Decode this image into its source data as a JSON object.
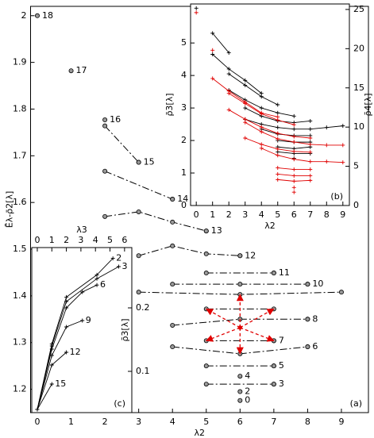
{
  "chart_data": [
    {
      "type": "scatter",
      "panel_label": "(a)",
      "xlabel": "λ2",
      "ylabel": "Ēλ-ρ̄2[λ]",
      "xlim": [
        -0.2,
        9.8
      ],
      "ylim": [
        1.15,
        2.02
      ],
      "xticks": [
        0,
        1,
        2,
        3,
        4,
        5,
        6,
        7,
        8,
        9
      ],
      "yticks": [
        1.2,
        1.3,
        1.4,
        1.5,
        1.6,
        1.7,
        1.8,
        1.9,
        2
      ],
      "point_color": "#999999",
      "points": {
        "x": [
          0,
          1,
          2,
          3,
          4,
          5,
          6,
          7,
          8,
          8,
          7,
          8,
          7,
          7,
          6,
          6,
          6
        ],
        "y": [
          2.0,
          1.882,
          1.777,
          1.686,
          1.607,
          1.539,
          1.486,
          1.449,
          1.425,
          1.35,
          1.304,
          1.291,
          1.25,
          1.211,
          1.228,
          1.195,
          1.176
        ],
        "labels": [
          "18",
          "17",
          "16",
          "15",
          "14",
          "13",
          "12",
          "11",
          "10",
          "8",
          "7",
          "6",
          "5",
          "3",
          "4",
          "2",
          "0"
        ]
      },
      "series": [
        {
          "color": "#000000",
          "x": [
            2,
            3
          ],
          "y": [
            1.764,
            1.686
          ]
        },
        {
          "color": "#000000",
          "x": [
            2,
            4
          ],
          "y": [
            1.667,
            1.607
          ]
        },
        {
          "color": "#000000",
          "x": [
            2,
            3,
            4,
            5
          ],
          "y": [
            1.57,
            1.58,
            1.558,
            1.539
          ]
        },
        {
          "color": "#000000",
          "x": [
            3,
            4,
            5,
            6
          ],
          "y": [
            1.486,
            1.507,
            1.49,
            1.486
          ]
        },
        {
          "color": "#000000",
          "x": [
            5,
            7
          ],
          "y": [
            1.449,
            1.449
          ]
        },
        {
          "color": "#000000",
          "x": [
            4,
            6,
            8
          ],
          "y": [
            1.425,
            1.425,
            1.425
          ]
        },
        {
          "color": "#000000",
          "x": [
            3,
            6,
            9
          ],
          "y": [
            1.408,
            1.403,
            1.408
          ]
        },
        {
          "color": "#000000",
          "x": [
            5,
            7
          ],
          "y": [
            1.372,
            1.372
          ]
        },
        {
          "color": "#000000",
          "x": [
            4,
            6,
            8
          ],
          "y": [
            1.337,
            1.35,
            1.35
          ]
        },
        {
          "color": "#000000",
          "x": [
            5,
            7
          ],
          "y": [
            1.304,
            1.304
          ]
        },
        {
          "color": "#000000",
          "x": [
            4,
            6,
            8
          ],
          "y": [
            1.291,
            1.276,
            1.291
          ]
        },
        {
          "color": "#000000",
          "x": [
            5,
            7
          ],
          "y": [
            1.25,
            1.25
          ]
        },
        {
          "color": "#000000",
          "x": [
            5,
            7
          ],
          "y": [
            1.211,
            1.211
          ]
        }
      ],
      "arrows": {
        "color": "#e00000",
        "from": {
          "x": 6,
          "y": 1.332
        },
        "to_x": [
          5,
          7,
          5,
          7,
          6,
          6
        ],
        "to_y": [
          1.372,
          1.372,
          1.304,
          1.304,
          1.403,
          1.276
        ]
      }
    },
    {
      "type": "line",
      "panel_label": "(b)",
      "xlabel": "λ2",
      "ylabel": "ρ̄3[λ]",
      "y2label": "ρ̄4[λ]",
      "xlim": [
        -0.35,
        9.4
      ],
      "ylim": [
        0,
        6.2
      ],
      "y2lim": [
        0,
        25.7
      ],
      "xticks": [
        0,
        1,
        2,
        3,
        4,
        5,
        6,
        7,
        8,
        9
      ],
      "yticks": [
        0,
        1,
        2,
        3,
        4,
        5
      ],
      "y2ticks": [
        0,
        5,
        10,
        15,
        20,
        25
      ],
      "y2color": "#e00000",
      "series": [
        {
          "color": "#000000",
          "axis": "y",
          "x": [
            0
          ],
          "values": [
            6.07
          ]
        },
        {
          "color": "#000000",
          "axis": "y",
          "x": [
            1,
            2
          ],
          "values": [
            5.3,
            4.7
          ]
        },
        {
          "color": "#000000",
          "axis": "y",
          "x": [
            1,
            2,
            3,
            4
          ],
          "values": [
            4.65,
            4.2,
            3.85,
            3.45
          ]
        },
        {
          "color": "#000000",
          "axis": "y",
          "x": [
            2,
            3,
            4,
            5
          ],
          "values": [
            4.05,
            3.7,
            3.35,
            3.1
          ]
        },
        {
          "color": "#000000",
          "axis": "y",
          "x": [
            2,
            3,
            4,
            5,
            6
          ],
          "values": [
            3.55,
            3.25,
            3.0,
            2.85,
            2.75
          ]
        },
        {
          "color": "#000000",
          "axis": "y",
          "x": [
            3,
            4,
            5,
            6,
            7
          ],
          "values": [
            3.0,
            2.75,
            2.6,
            2.55,
            2.6
          ]
        },
        {
          "color": "#000000",
          "axis": "y",
          "x": [
            3,
            4,
            5,
            6,
            7,
            8,
            9
          ],
          "values": [
            2.65,
            2.5,
            2.4,
            2.35,
            2.35,
            2.4,
            2.45
          ]
        },
        {
          "color": "#000000",
          "axis": "y",
          "x": [
            4,
            5,
            6,
            7
          ],
          "values": [
            2.35,
            2.2,
            2.15,
            2.15
          ]
        },
        {
          "color": "#000000",
          "axis": "y",
          "x": [
            5,
            6,
            7
          ],
          "values": [
            2.0,
            1.95,
            1.95
          ]
        },
        {
          "color": "#000000",
          "axis": "y",
          "x": [
            5,
            6,
            7
          ],
          "values": [
            1.8,
            1.75,
            1.8
          ]
        },
        {
          "color": "#000000",
          "axis": "y",
          "x": [
            5,
            6,
            7
          ],
          "values": [
            1.65,
            1.6,
            1.6
          ]
        },
        {
          "color": "#000000",
          "axis": "y",
          "x": [
            6
          ],
          "values": [
            1.45
          ]
        },
        {
          "color": "#e00000",
          "axis": "y2",
          "x": [
            0
          ],
          "values": [
            24.6
          ]
        },
        {
          "color": "#e00000",
          "axis": "y2",
          "x": [
            1
          ],
          "values": [
            19.8
          ]
        },
        {
          "color": "#e00000",
          "axis": "y2",
          "x": [
            1,
            2,
            3,
            4,
            5
          ],
          "values": [
            16.2,
            14.6,
            13.2,
            11.8,
            11.3
          ]
        },
        {
          "color": "#e00000",
          "axis": "y2",
          "x": [
            2,
            3,
            4,
            5,
            6
          ],
          "values": [
            14.3,
            13.0,
            11.7,
            10.9,
            10.3
          ]
        },
        {
          "color": "#e00000",
          "axis": "y2",
          "x": [
            2,
            3,
            4,
            5,
            6,
            7
          ],
          "values": [
            12.2,
            11.0,
            10.0,
            9.2,
            8.8,
            8.6
          ]
        },
        {
          "color": "#e00000",
          "axis": "y2",
          "x": [
            3,
            4,
            5,
            6,
            7,
            8,
            9
          ],
          "values": [
            10.6,
            9.4,
            8.5,
            8.1,
            7.8,
            7.7,
            7.7
          ]
        },
        {
          "color": "#e00000",
          "axis": "y2",
          "x": [
            3,
            4,
            5,
            6,
            7
          ],
          "values": [
            8.6,
            7.8,
            7.2,
            6.9,
            6.8
          ]
        },
        {
          "color": "#e00000",
          "axis": "y2",
          "x": [
            4,
            5,
            6,
            7,
            8,
            9
          ],
          "values": [
            7.3,
            6.4,
            5.9,
            5.6,
            5.6,
            5.5
          ]
        },
        {
          "color": "#e00000",
          "axis": "y2",
          "x": [
            5,
            6,
            7
          ],
          "values": [
            4.8,
            4.6,
            4.6
          ]
        },
        {
          "color": "#e00000",
          "axis": "y2",
          "x": [
            5,
            6,
            7
          ],
          "values": [
            4.0,
            3.8,
            3.8
          ]
        },
        {
          "color": "#e00000",
          "axis": "y2",
          "x": [
            5,
            6,
            7
          ],
          "values": [
            3.3,
            3.1,
            3.2
          ]
        },
        {
          "color": "#e00000",
          "axis": "y2",
          "x": [
            6
          ],
          "values": [
            2.3
          ]
        },
        {
          "color": "#e00000",
          "axis": "y2",
          "x": [
            6
          ],
          "values": [
            1.7
          ]
        }
      ]
    },
    {
      "type": "line",
      "panel_label": "(c)",
      "xlabel": "λ3",
      "y2label": "ρ̄3[λ]",
      "xlim": [
        -0.38,
        6.5
      ],
      "y2lim": [
        0.035,
        0.295
      ],
      "xticks": [
        0,
        1,
        2,
        3,
        4,
        5,
        6
      ],
      "y2ticks": [
        0.1,
        0.2
      ],
      "xaxis_position": "top",
      "series": [
        {
          "color": "#000000",
          "axis": "y2",
          "x": [
            0,
            1,
            2,
            4.1,
            5.2
          ],
          "values": [
            0.04,
            0.143,
            0.217,
            0.252,
            0.278
          ],
          "end_label": "2"
        },
        {
          "color": "#000000",
          "axis": "y2",
          "x": [
            0,
            1,
            2,
            4.1,
            5.6
          ],
          "values": [
            0.04,
            0.14,
            0.21,
            0.246,
            0.265
          ],
          "end_label": "3"
        },
        {
          "color": "#000000",
          "axis": "y2",
          "x": [
            0,
            1,
            2,
            3.1,
            4.1
          ],
          "values": [
            0.04,
            0.135,
            0.2,
            0.225,
            0.236
          ],
          "end_label": "6"
        },
        {
          "color": "#000000",
          "axis": "y2",
          "x": [
            0,
            1,
            2,
            3.1
          ],
          "values": [
            0.04,
            0.125,
            0.17,
            0.18
          ],
          "end_label": "9"
        },
        {
          "color": "#000000",
          "axis": "y2",
          "x": [
            0,
            1,
            2
          ],
          "values": [
            0.04,
            0.11,
            0.13
          ],
          "end_label": "12"
        },
        {
          "color": "#000000",
          "axis": "y2",
          "x": [
            0,
            1
          ],
          "values": [
            0.04,
            0.08
          ],
          "end_label": "15"
        }
      ]
    }
  ]
}
